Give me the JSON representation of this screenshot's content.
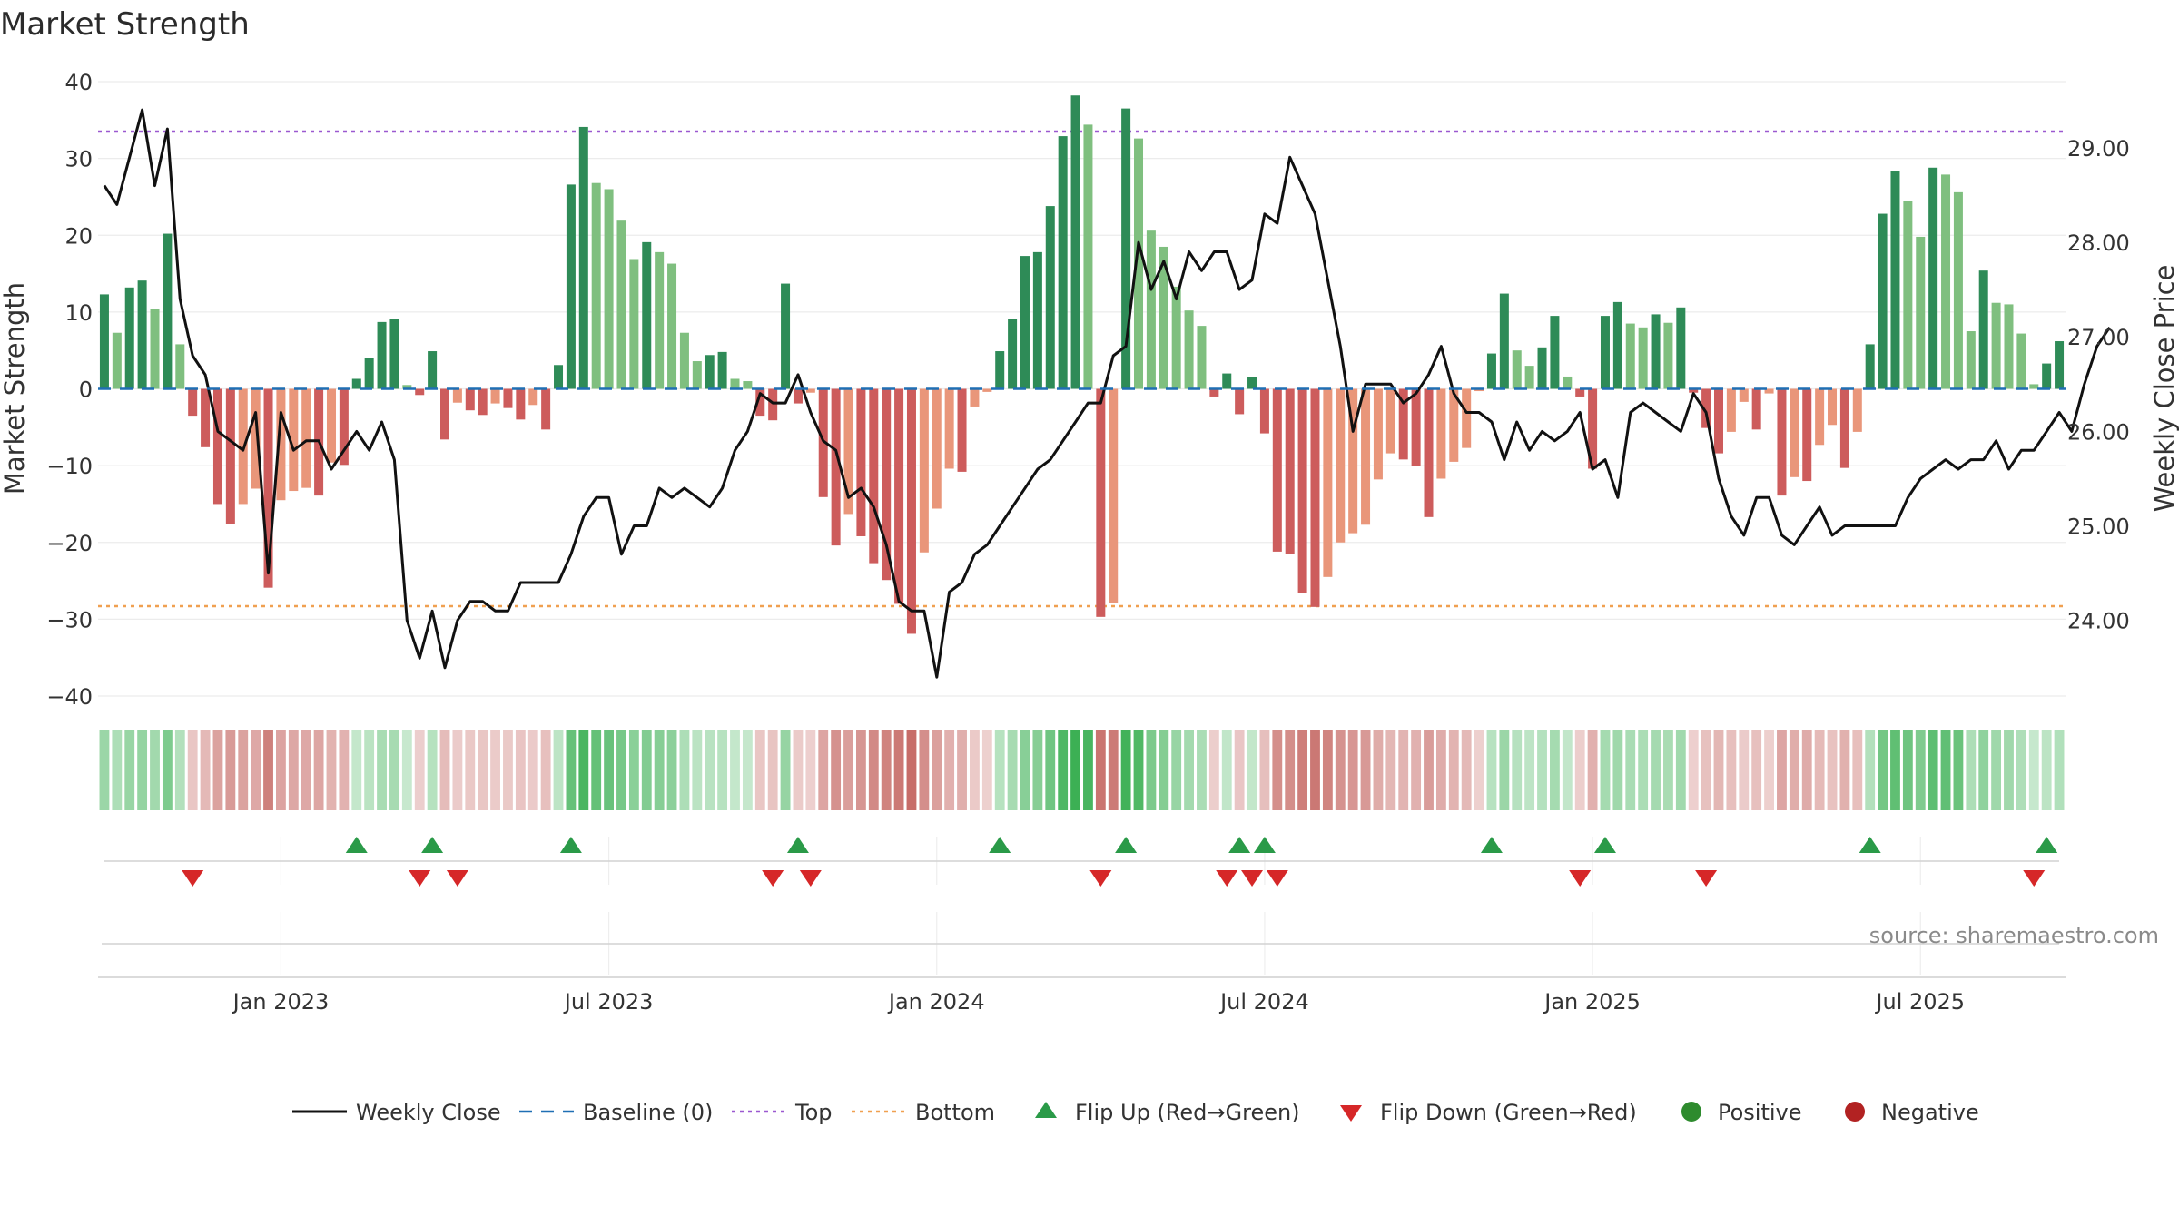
{
  "chart_data": {
    "type": "bar+line",
    "title": "Market Strength",
    "ylabel_left": "Market Strength",
    "ylabel_right": "Weekly Close Price",
    "ylim_left": [
      -40,
      40
    ],
    "ylim_right": [
      23.2,
      29.7
    ],
    "yticks_left": [
      "40",
      "30",
      "20",
      "10",
      "0",
      "−10",
      "−20",
      "−30",
      "−40"
    ],
    "yticks_left_values": [
      40,
      30,
      20,
      10,
      0,
      -10,
      -20,
      -30,
      -40
    ],
    "yticks_right": [
      "29.00",
      "28.00",
      "27.00",
      "26.00",
      "25.00",
      "24.00"
    ],
    "yticks_right_values": [
      29,
      28,
      27,
      26,
      25,
      24
    ],
    "x_tick_labels": [
      "Jan 2023",
      "Jul 2023",
      "Jan 2024",
      "Jul 2024",
      "Jan 2025",
      "Jul 2025"
    ],
    "x_tick_weeks": [
      14.5,
      40.5,
      66.5,
      92.5,
      118.5,
      144.5
    ],
    "top_line": 33.5,
    "bottom_line": -28.3,
    "baseline": 0,
    "strength": [
      12.3,
      7.3,
      13.2,
      14.1,
      10.4,
      20.2,
      5.8,
      -3.5,
      -7.6,
      -15,
      -17.6,
      -15,
      -13,
      -25.9,
      -14.5,
      -13.3,
      -12.9,
      -13.9,
      -9.6,
      -9.9,
      1.3,
      4,
      8.7,
      9.1,
      0.5,
      -0.8,
      4.9,
      -6.6,
      -1.8,
      -2.8,
      -3.4,
      -1.9,
      -2.5,
      -4,
      -2.1,
      -5.3,
      3.1,
      26.6,
      34.1,
      26.8,
      26,
      21.9,
      16.9,
      19.1,
      17.8,
      16.3,
      7.3,
      3.6,
      4.4,
      4.8,
      1.3,
      1,
      -3.5,
      -4.1,
      13.7,
      -1.9,
      -0.5,
      -14.1,
      -20.4,
      -16.3,
      -19.2,
      -22.7,
      -24.9,
      -28,
      -31.9,
      -21.3,
      -15.6,
      -10.4,
      -10.8,
      -2.3,
      -0.4,
      4.9,
      9.1,
      17.3,
      17.8,
      23.8,
      32.9,
      38.2,
      34.4,
      -29.7,
      -27.9,
      36.5,
      32.6,
      20.6,
      18.5,
      13.3,
      10.2,
      8.2,
      -1,
      2,
      -3.3,
      1.5,
      -5.8,
      -21.2,
      -21.5,
      -26.6,
      -28.4,
      -24.5,
      -20,
      -18.8,
      -17.7,
      -11.8,
      -8.4,
      -9.2,
      -10.1,
      -16.7,
      -11.7,
      -9.5,
      -7.7,
      -0.3,
      4.6,
      12.4,
      5,
      3,
      5.4,
      9.5,
      1.6,
      -1,
      -10.4,
      9.5,
      11.3,
      8.5,
      8,
      9.7,
      8.6,
      10.6,
      -0.5,
      -5.1,
      -8.4,
      -5.6,
      -1.7,
      -5.3,
      -0.6,
      -13.9,
      -11.5,
      -12,
      -7.3,
      -4.7,
      -10.3,
      -5.6,
      5.8,
      22.8,
      28.3,
      24.5,
      19.8,
      28.8,
      27.9,
      25.6,
      7.5,
      15.4,
      11.2,
      11,
      7.2,
      0.6,
      3.3,
      6.2
    ],
    "weekly_close": [
      28.6,
      28.4,
      28.9,
      29.4,
      28.6,
      29.2,
      27.4,
      26.8,
      26.6,
      26.0,
      25.9,
      25.8,
      26.2,
      24.5,
      26.2,
      25.8,
      25.9,
      25.9,
      25.6,
      25.8,
      26.0,
      25.8,
      26.1,
      25.7,
      24.0,
      23.6,
      24.1,
      23.5,
      24.0,
      24.2,
      24.2,
      24.1,
      24.1,
      24.4,
      24.4,
      24.4,
      24.4,
      24.7,
      25.1,
      25.3,
      25.3,
      24.7,
      25.0,
      25.0,
      25.4,
      25.3,
      25.4,
      25.3,
      25.2,
      25.4,
      25.8,
      26.0,
      26.4,
      26.3,
      26.3,
      26.6,
      26.2,
      25.9,
      25.8,
      25.3,
      25.4,
      25.2,
      24.8,
      24.2,
      24.1,
      24.1,
      23.4,
      24.3,
      24.4,
      24.7,
      24.8,
      25.0,
      25.2,
      25.4,
      25.6,
      25.7,
      25.9,
      26.1,
      26.3,
      26.3,
      26.8,
      26.9,
      28.0,
      27.5,
      27.8,
      27.4,
      27.9,
      27.7,
      27.9,
      27.9,
      27.5,
      27.6,
      28.3,
      28.2,
      28.9,
      28.6,
      28.3,
      27.6,
      26.9,
      26.0,
      26.5,
      26.5,
      26.5,
      26.3,
      26.4,
      26.6,
      26.9,
      26.4,
      26.2,
      26.2,
      26.1,
      25.7,
      26.1,
      25.8,
      26.0,
      25.9,
      26.0,
      26.2,
      25.6,
      25.7,
      25.3,
      26.2,
      26.3,
      26.2,
      26.1,
      26.0,
      26.4,
      26.2,
      25.5,
      25.1,
      24.9,
      25.3,
      25.3,
      24.9,
      24.8,
      25.0,
      25.2,
      24.9,
      25.0,
      25.0,
      25.0,
      25.0,
      25.0,
      25.3,
      25.5,
      25.6,
      25.7,
      25.6,
      25.7,
      25.7,
      25.9,
      25.6,
      25.8,
      25.8,
      26.0,
      26.2,
      26.0,
      26.5,
      26.9,
      27.1
    ],
    "flip_up_weeks": [
      20,
      26,
      37,
      55,
      71,
      81,
      90,
      92,
      110,
      119,
      140,
      154
    ],
    "flip_down_weeks": [
      7,
      25,
      28,
      53,
      56,
      79,
      89,
      91,
      93,
      117,
      127,
      153
    ],
    "markers_positive_weeks": [],
    "markers_negative_weeks": [],
    "legend": [
      {
        "label": "Weekly Close",
        "kind": "line"
      },
      {
        "label": "Baseline (0)",
        "kind": "dash"
      },
      {
        "label": "Top",
        "kind": "dot-purple"
      },
      {
        "label": "Bottom",
        "kind": "dot-orange"
      },
      {
        "label": "Flip Up (Red→Green)",
        "kind": "tri-up"
      },
      {
        "label": "Flip Down (Green→Red)",
        "kind": "tri-down"
      },
      {
        "label": "Positive",
        "kind": "circle-green"
      },
      {
        "label": "Negative",
        "kind": "circle-red"
      }
    ],
    "source": "source: sharemaestro.com"
  },
  "colors": {
    "pos_dark": "#2e8b57",
    "pos_light": "#7fbf7f",
    "neg_dark": "#cd5c5c",
    "neg_light": "#e9967a",
    "line": "#111111",
    "top": "#9b59d0",
    "bottom": "#f0a050",
    "baseline": "#1f6fb4",
    "flip_up": "#2a9a48",
    "flip_down": "#d62728",
    "positive": "#2e8b2e",
    "negative": "#b22222",
    "strip_green": "#3cb054",
    "strip_red": "#c05a55"
  }
}
